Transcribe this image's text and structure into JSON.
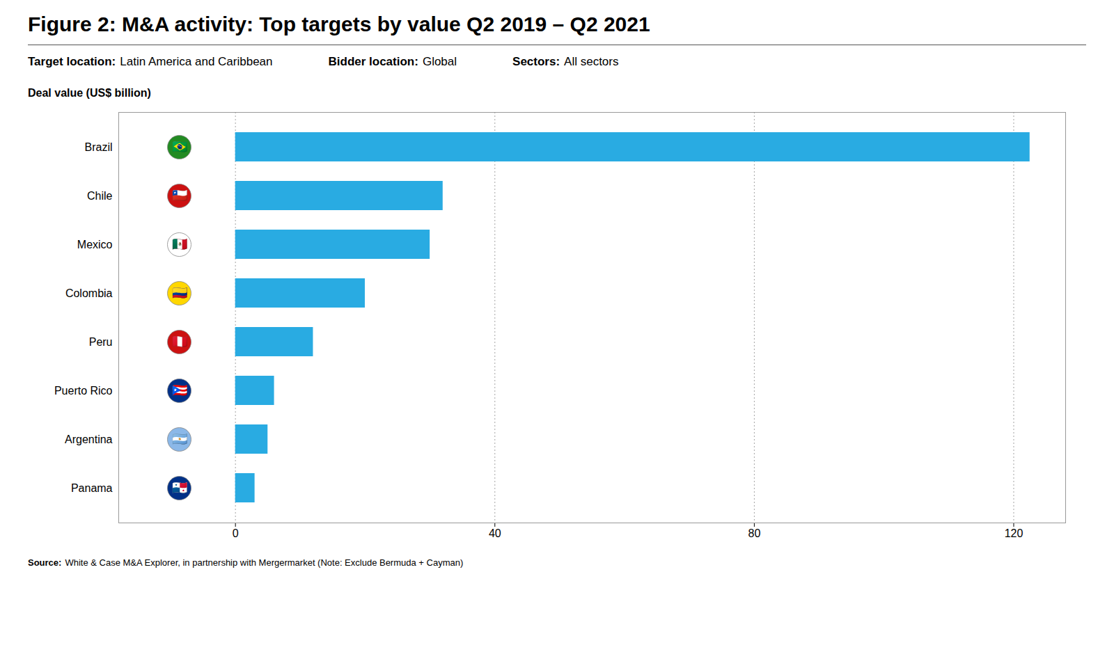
{
  "chart_data": {
    "type": "bar",
    "orientation": "horizontal",
    "title": "Figure 2: M&A activity: Top targets by value Q2 2019 – Q2 2021",
    "subtitle": [
      "Target location:",
      "Latin America and Caribbean",
      "Bidder location:",
      "Global",
      "Sectors:",
      "All sectors"
    ],
    "xlabel": "Deal value (US$ billion)",
    "source": [
      "Source:",
      "White & Case M&A Explorer, in partnership with Mergermarket (Note: Exclude Bermuda + Cayman)"
    ],
    "categories": [
      "Brazil",
      "Chile",
      "Mexico",
      "Colombia",
      "Peru",
      "Puerto Rico",
      "Argentina",
      "Panama"
    ],
    "values": [
      122.5,
      32.0,
      30.0,
      20.0,
      12.0,
      6.0,
      5.0,
      3.0
    ],
    "color": "#29ABE2",
    "xlim": [
      -18,
      128
    ],
    "xticks": [
      0,
      40,
      80,
      120
    ],
    "grid": true,
    "annotations": [
      {
        "category": "Brazil",
        "text": "🇧🇷",
        "color": "#228B22"
      },
      {
        "category": "Chile",
        "text": "🇨🇱",
        "color": "#CC1111"
      },
      {
        "category": "Mexico",
        "text": "🇲🇽",
        "color": "#FFFFFF"
      },
      {
        "category": "Colombia",
        "text": "🇨🇴",
        "color": "#FFD700"
      },
      {
        "category": "Peru",
        "text": "🇵🇪",
        "color": "#CC1111"
      },
      {
        "category": "Puerto Rico",
        "text": "🇵🇷",
        "color": "#003087"
      },
      {
        "category": "Argentina",
        "text": "🇦🇷",
        "color": "#8BB8E8"
      },
      {
        "category": "Panama",
        "text": "🇵🇦",
        "color": "#003087"
      }
    ]
  }
}
